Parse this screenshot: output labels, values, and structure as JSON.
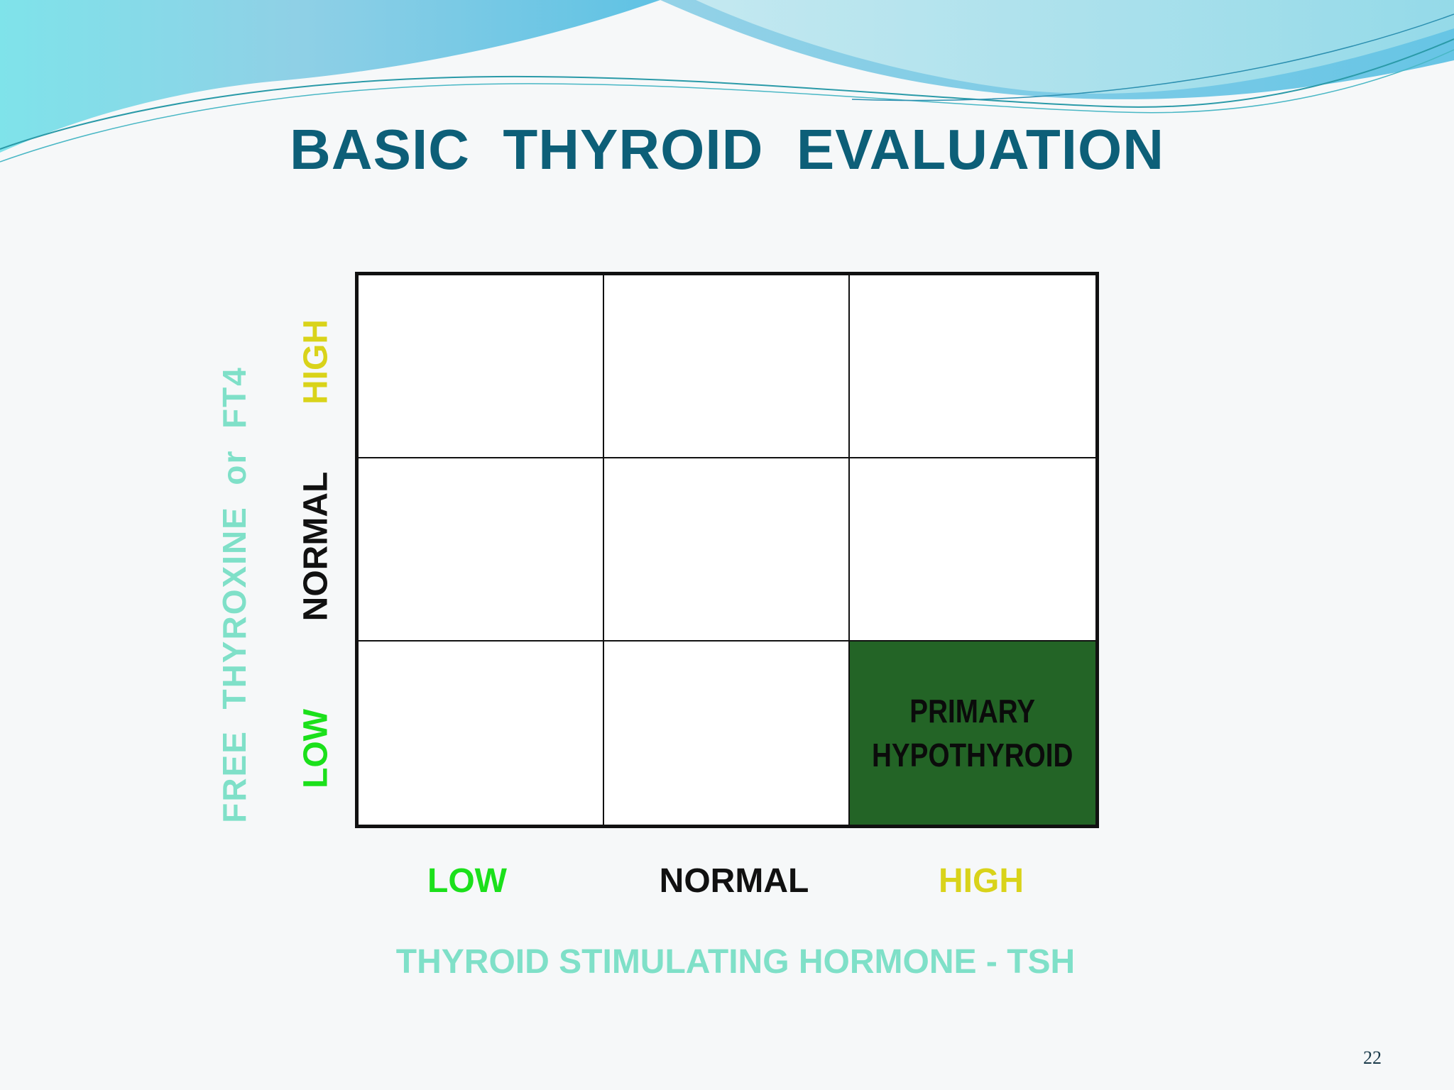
{
  "slide": {
    "title": "BASIC  THYROID  EVALUATION",
    "page_number": "22"
  },
  "y_axis": {
    "title": "FREE  THYROXINE  or  FT4",
    "levels": {
      "high": "HIGH",
      "normal": "NORMAL",
      "low": "LOW"
    }
  },
  "x_axis": {
    "title": "THYROID STIMULATING HORMONE - TSH",
    "levels": {
      "low": "LOW",
      "normal": "NORMAL",
      "high": "HIGH"
    }
  },
  "grid": {
    "highlight_cell": {
      "row": "LOW",
      "column": "HIGH",
      "line1": "PRIMARY",
      "line2": "HYPOTHYROID"
    }
  },
  "colors": {
    "title": "#0d5f78",
    "axis_title": "#7fe0c8",
    "low": "#1be01b",
    "normal": "#111111",
    "high": "#d9d31a",
    "highlight_fill": "#236426"
  }
}
